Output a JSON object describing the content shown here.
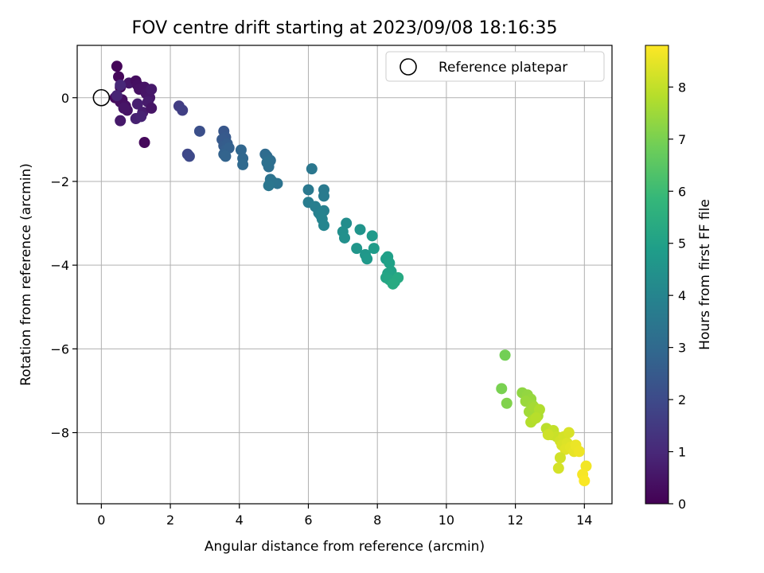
{
  "chart_data": {
    "type": "scatter",
    "title": "FOV centre drift starting at 2023/09/08 18:16:35",
    "xlabel": "Angular distance from reference (arcmin)",
    "ylabel": "Rotation from reference (arcmin)",
    "xlim": [
      -0.7,
      14.8
    ],
    "ylim": [
      -9.7,
      1.25
    ],
    "xticks": [
      0,
      2,
      4,
      6,
      8,
      10,
      12,
      14
    ],
    "yticks": [
      0,
      -2,
      -4,
      -6,
      -8
    ],
    "grid": true,
    "legend": {
      "placement": "top-right",
      "label": "Reference platepar"
    },
    "reference_point": {
      "x": 0,
      "y": 0
    },
    "colorbar": {
      "label": "Hours from first FF file",
      "range": [
        0,
        8.8
      ],
      "ticks": [
        0,
        1,
        2,
        3,
        4,
        5,
        6,
        7,
        8
      ],
      "colormap": "viridis",
      "colormap_stops": [
        "#440154",
        "#482878",
        "#3e4989",
        "#31688e",
        "#26828e",
        "#1f9e89",
        "#35b779",
        "#6ece58",
        "#b5de2b",
        "#fde725"
      ]
    },
    "series": [
      {
        "x": [
          0.45,
          0.5,
          0.55,
          0.4,
          0.6,
          0.55,
          0.7,
          0.75,
          0.65,
          0.8,
          0.55,
          1.0,
          1.05,
          1.1,
          1.25,
          1.3,
          1.4,
          1.45,
          1.35,
          1.2,
          1.05,
          1.0,
          1.15,
          1.45,
          1.25,
          0.45,
          0.55
        ],
        "y": [
          0.75,
          0.5,
          0.25,
          0.0,
          -0.05,
          -0.1,
          -0.2,
          -0.3,
          -0.25,
          0.35,
          -0.55,
          0.4,
          0.3,
          0.2,
          0.25,
          0.1,
          0.0,
          0.2,
          -0.1,
          -0.35,
          -0.15,
          -0.5,
          -0.45,
          -0.25,
          -1.07,
          0.05,
          0.3
        ],
        "t": [
          0.1,
          0.15,
          0.2,
          0.25,
          0.3,
          0.35,
          0.4,
          0.45,
          0.5,
          0.55,
          0.6,
          0.3,
          0.35,
          0.4,
          0.45,
          0.5,
          0.55,
          0.6,
          0.65,
          0.7,
          0.75,
          0.8,
          0.85,
          0.5,
          0.2,
          0.9,
          1.0
        ]
      },
      {
        "x": [
          2.25,
          2.35,
          2.5,
          2.55,
          2.85,
          3.55,
          3.6,
          3.5,
          3.55,
          3.65,
          3.6,
          3.7,
          3.55,
          3.6,
          4.05,
          4.1,
          4.1,
          4.75,
          4.8,
          4.9,
          4.85,
          4.8,
          4.9,
          5.1,
          4.95,
          4.85
        ],
        "y": [
          -0.2,
          -0.3,
          -1.35,
          -1.4,
          -0.8,
          -0.8,
          -0.95,
          -1.0,
          -1.15,
          -1.1,
          -1.25,
          -1.2,
          -1.35,
          -1.4,
          -1.25,
          -1.45,
          -1.6,
          -1.35,
          -1.4,
          -1.5,
          -1.65,
          -1.55,
          -1.95,
          -2.05,
          -2.0,
          -2.1
        ],
        "t": [
          1.6,
          1.65,
          1.9,
          1.95,
          2.15,
          2.4,
          2.45,
          2.5,
          2.55,
          2.6,
          2.65,
          2.7,
          2.75,
          2.8,
          2.9,
          2.95,
          3.0,
          3.05,
          3.1,
          3.15,
          3.2,
          3.25,
          3.3,
          3.35,
          3.4,
          3.45
        ]
      },
      {
        "x": [
          6.1,
          6.0,
          6.45,
          6.45,
          6.0,
          6.2,
          6.3,
          6.45,
          6.35,
          6.4,
          6.45,
          7.1,
          7.0,
          7.05,
          7.5,
          7.4,
          7.65,
          7.7,
          7.85,
          7.9,
          8.25,
          8.3,
          8.35,
          8.4,
          8.3,
          8.25,
          8.35,
          8.5,
          8.6,
          8.45
        ],
        "y": [
          -1.7,
          -2.2,
          -2.2,
          -2.35,
          -2.5,
          -2.6,
          -2.75,
          -2.7,
          -2.8,
          -2.9,
          -3.05,
          -3.0,
          -3.2,
          -3.35,
          -3.15,
          -3.6,
          -3.75,
          -3.85,
          -3.3,
          -3.6,
          -3.85,
          -3.8,
          -3.95,
          -4.15,
          -4.2,
          -4.3,
          -4.35,
          -4.4,
          -4.3,
          -4.45
        ],
        "t": [
          3.5,
          3.55,
          3.6,
          3.65,
          3.7,
          3.75,
          3.8,
          3.85,
          3.9,
          3.95,
          4.0,
          4.3,
          4.35,
          4.4,
          4.55,
          4.6,
          4.65,
          4.7,
          4.75,
          4.8,
          4.9,
          4.95,
          5.0,
          5.05,
          5.1,
          5.15,
          5.2,
          5.25,
          5.3,
          5.35
        ]
      },
      {
        "x": [
          11.7,
          11.6,
          11.75,
          12.2,
          12.35,
          12.45,
          12.3,
          12.5,
          12.4,
          12.55,
          12.65,
          12.5,
          12.7,
          12.45,
          12.6,
          12.9,
          13.0,
          13.1,
          13.05,
          13.2,
          12.95,
          13.3,
          13.4,
          13.35,
          13.5,
          13.45,
          13.6,
          13.7,
          13.75,
          13.85,
          13.55,
          13.3,
          13.25,
          14.05,
          13.95,
          14.0
        ],
        "y": [
          -6.15,
          -6.95,
          -7.3,
          -7.05,
          -7.1,
          -7.2,
          -7.25,
          -7.35,
          -7.5,
          -7.4,
          -7.6,
          -7.7,
          -7.45,
          -7.75,
          -7.65,
          -7.9,
          -8.0,
          -7.95,
          -8.05,
          -8.1,
          -8.05,
          -8.2,
          -8.1,
          -8.3,
          -8.25,
          -8.4,
          -8.35,
          -8.45,
          -8.3,
          -8.45,
          -8.0,
          -8.6,
          -8.85,
          -8.8,
          -9.0,
          -9.15
        ],
        "t": [
          6.9,
          7.0,
          7.1,
          7.3,
          7.35,
          7.4,
          7.45,
          7.5,
          7.55,
          7.6,
          7.65,
          7.7,
          7.75,
          7.8,
          7.85,
          7.9,
          7.95,
          8.0,
          8.05,
          8.1,
          8.15,
          8.2,
          8.25,
          8.3,
          8.35,
          8.4,
          8.45,
          8.5,
          8.55,
          8.6,
          8.3,
          8.2,
          8.25,
          8.65,
          8.7,
          8.75
        ]
      }
    ]
  }
}
